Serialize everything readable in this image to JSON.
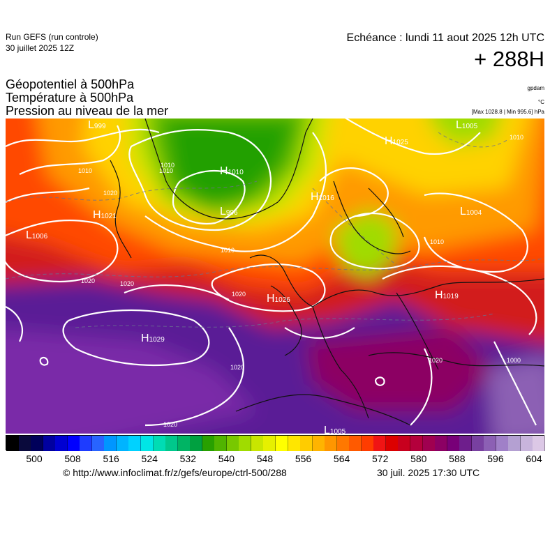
{
  "header": {
    "run_name": "Run GEFS (run controle)",
    "run_date": "30 juillet 2025 12Z",
    "valid_time": "Echéance : lundi 11 aout 2025 12h UTC",
    "lead_time": "+ 288H"
  },
  "layers": {
    "geopotential": "Géopotentiel à 500hPa",
    "temperature": "Température à 500hPa",
    "pressure": "Pression au niveau de la mer"
  },
  "units": {
    "geopotential": "gpdam",
    "temperature": "°C",
    "pressure_range": "[Max 1028.8 | Min 995.6] hPa"
  },
  "pressure_centers": [
    {
      "type": "L",
      "value": "999"
    },
    {
      "type": "H",
      "value": "1010"
    },
    {
      "type": "L",
      "value": "996"
    },
    {
      "type": "H",
      "value": "1021"
    },
    {
      "type": "L",
      "value": "1006"
    },
    {
      "type": "H",
      "value": "1025"
    },
    {
      "type": "L",
      "value": "1005"
    },
    {
      "type": "H",
      "value": "1016"
    },
    {
      "type": "L",
      "value": "1004"
    },
    {
      "type": "H",
      "value": "1026"
    },
    {
      "type": "H",
      "value": "1019"
    },
    {
      "type": "H",
      "value": "1029"
    },
    {
      "type": "L",
      "value": "1005"
    }
  ],
  "isobar_labels": [
    "1010",
    "1010",
    "1010",
    "1010",
    "1020",
    "1020",
    "1020",
    "1020",
    "1020",
    "1020",
    "1010",
    "1000",
    "1010",
    "1020"
  ],
  "colorbar": {
    "labels": [
      "500",
      "508",
      "516",
      "524",
      "532",
      "540",
      "548",
      "556",
      "564",
      "572",
      "580",
      "588",
      "596",
      "604"
    ],
    "colors": [
      "#000000",
      "#0a0a3c",
      "#00005a",
      "#0000a0",
      "#0000d2",
      "#0000ff",
      "#1e3cff",
      "#2864ff",
      "#0096ff",
      "#00b4ff",
      "#00d2ff",
      "#00e6e6",
      "#00dcb4",
      "#00c88c",
      "#00b464",
      "#00a040",
      "#28a000",
      "#50b400",
      "#78c800",
      "#a0dc00",
      "#c8e600",
      "#e6f000",
      "#ffff00",
      "#ffe600",
      "#ffcc00",
      "#ffb400",
      "#ff9600",
      "#ff7800",
      "#ff5a00",
      "#ff3c00",
      "#f01414",
      "#dc0000",
      "#c8001e",
      "#b4003c",
      "#a00050",
      "#8c0064",
      "#780078",
      "#6e1e8c",
      "#7840a0",
      "#8c60b4",
      "#a080c8",
      "#b4a0d2",
      "#c8b4dc",
      "#dcc8e6"
    ]
  },
  "footer": {
    "credit": "© http://www.infoclimat.fr/z/gefs/europe/ctrl-500/288",
    "generated": "30 juil. 2025 17:30 UTC"
  }
}
